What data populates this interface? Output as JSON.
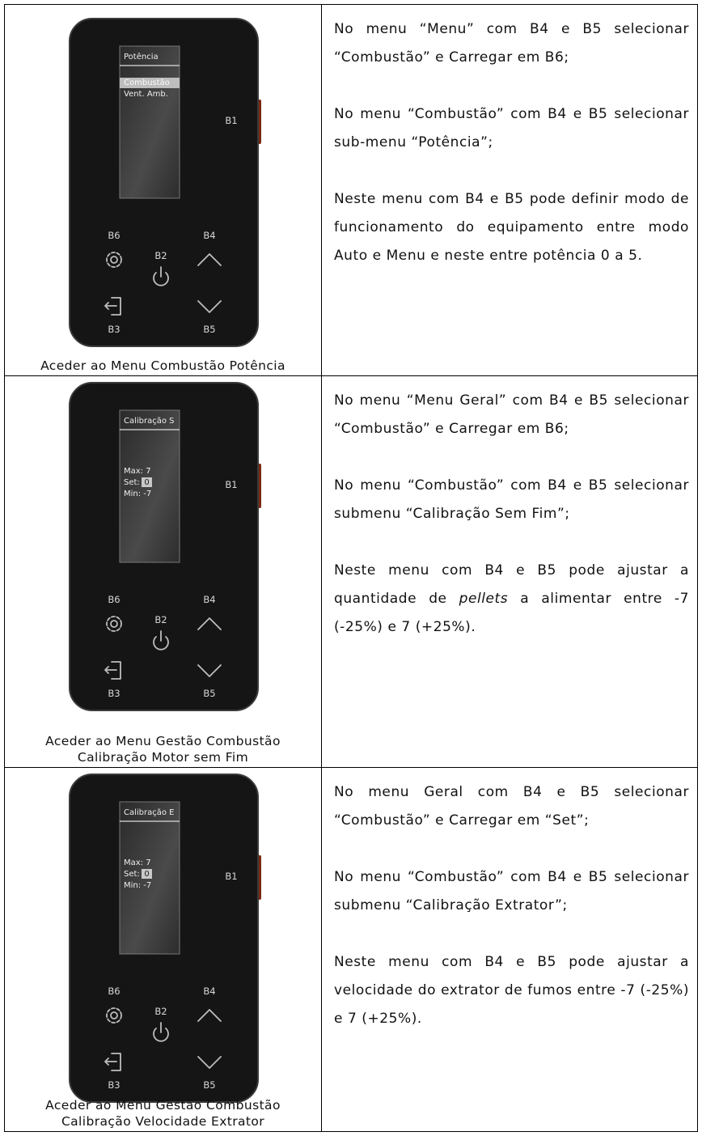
{
  "rows": [
    {
      "device": {
        "screen_title": "Potência",
        "screen_lines": [
          {
            "text": "Combustão",
            "selected": true
          },
          {
            "text": "Vent. Amb."
          }
        ],
        "buttons": {
          "b1": "B1",
          "b2": "B2",
          "b3": "B3",
          "b4": "B4",
          "b5": "B5",
          "b6": "B6"
        }
      },
      "caption": [
        "Aceder ao Menu Combustão Potência"
      ],
      "paragraphs": [
        [
          "No menu “Menu” com B4 e B5 selecionar “Combustão” e Carregar em B6;"
        ],
        [
          "No menu “Combustão” com B4 e B5 selecionar sub-menu “Potência”;"
        ],
        [
          "Neste menu com B4 e B5 pode definir modo de funcionamento do equipamento entre modo Auto e Menu e neste entre potência 0 a 5."
        ]
      ]
    },
    {
      "device": {
        "screen_title": "Calibração S",
        "screen_lines": [
          {
            "text": "Max: 7"
          },
          {
            "text": "Set:",
            "value": "0"
          },
          {
            "text": "Min: -7"
          }
        ],
        "buttons": {
          "b1": "B1",
          "b2": "B2",
          "b3": "B3",
          "b4": "B4",
          "b5": "B5",
          "b6": "B6"
        }
      },
      "caption": [
        "Aceder ao Menu Gestão Combustão",
        "Calibração Motor sem Fim"
      ],
      "paragraphs": [
        [
          "No menu “Menu Geral” com B4 e B5 selecionar “Combustão” e Carregar em B6;"
        ],
        [
          "No menu “Combustão” com B4 e B5 selecionar submenu “Calibração Sem Fim”;"
        ],
        [
          "Neste menu com B4 e B5 pode ajustar a quantidade de ",
          {
            "text": "pellets",
            "style": "italic"
          },
          " a alimentar entre -7 (-25%) e 7 (+25%)."
        ]
      ]
    },
    {
      "device": {
        "screen_title": "Calibração E",
        "screen_lines": [
          {
            "text": "Max: 7"
          },
          {
            "text": "Set:",
            "value": "0"
          },
          {
            "text": "Min: -7"
          }
        ],
        "buttons": {
          "b1": "B1",
          "b2": "B2",
          "b3": "B3",
          "b4": "B4",
          "b5": "B5",
          "b6": "B6"
        }
      },
      "caption": [
        "Aceder ao Menu Gestão Combustão",
        "Calibração Velocidade Extrator"
      ],
      "paragraphs": [
        [
          "No menu Geral com B4 e B5 selecionar “Combustão” e Carregar em “Set”;"
        ],
        [
          "No menu “Combustão” com B4 e B5 selecionar submenu “Calibração Extrator”;"
        ],
        [
          "Neste menu com B4 e B5 pode ajustar a velocidade do extrator de fumos entre -7 (-25%) e 7 (+25%)."
        ]
      ]
    }
  ]
}
